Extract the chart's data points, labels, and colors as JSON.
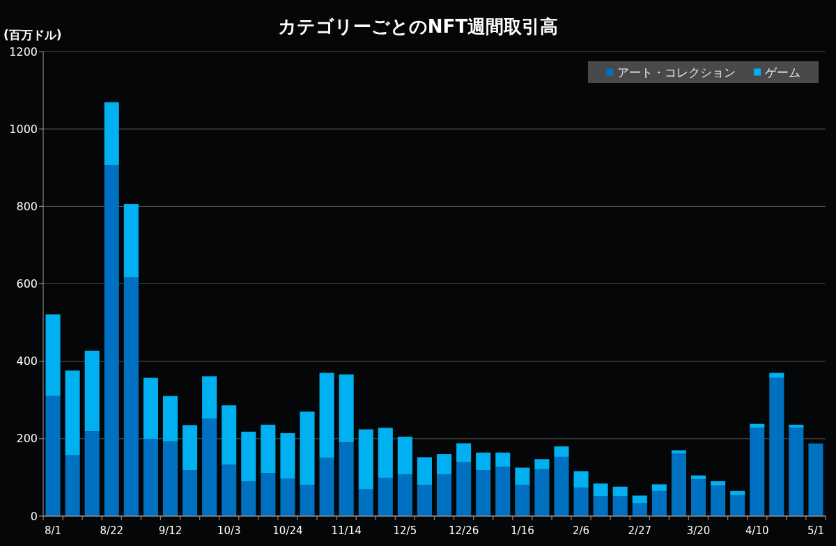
{
  "chart_data": {
    "type": "bar",
    "title": "カテゴリーごとのNFT週間取引高",
    "ylabel": "(百万ドル)",
    "categories": [
      "8/1",
      null,
      null,
      "8/22",
      null,
      null,
      "9/12",
      null,
      null,
      "10/3",
      null,
      null,
      "10/24",
      null,
      null,
      "11/14",
      null,
      null,
      "12/5",
      null,
      null,
      "12/26",
      null,
      null,
      "1/16",
      null,
      null,
      "2/6",
      null,
      null,
      "2/27",
      null,
      null,
      "3/20",
      null,
      null,
      "4/10",
      null,
      null,
      "5/1"
    ],
    "series": [
      {
        "name": "アート・コレクション",
        "color": "#0070c0",
        "values": [
          310,
          157,
          219,
          906,
          616,
          199,
          193,
          118,
          252,
          133,
          89,
          111,
          96,
          81,
          150,
          190,
          69,
          99,
          107,
          81,
          107,
          139,
          118,
          127,
          81,
          121,
          153,
          73,
          52,
          51,
          33,
          65,
          161,
          95,
          79,
          53,
          228,
          358,
          228,
          185
        ]
      },
      {
        "name": "ゲーム",
        "color": "#00b0f0",
        "values": [
          211,
          219,
          208,
          163,
          190,
          158,
          117,
          117,
          109,
          153,
          129,
          125,
          118,
          189,
          220,
          176,
          155,
          129,
          98,
          71,
          53,
          49,
          46,
          37,
          44,
          26,
          27,
          43,
          32,
          25,
          20,
          17,
          9,
          10,
          11,
          12,
          10,
          12,
          8,
          2
        ]
      }
    ],
    "stacked": true,
    "ylim": [
      0,
      1200
    ],
    "yticks": [
      0,
      200,
      400,
      600,
      800,
      1000,
      1200
    ],
    "grid": "y",
    "legend": "top right"
  }
}
